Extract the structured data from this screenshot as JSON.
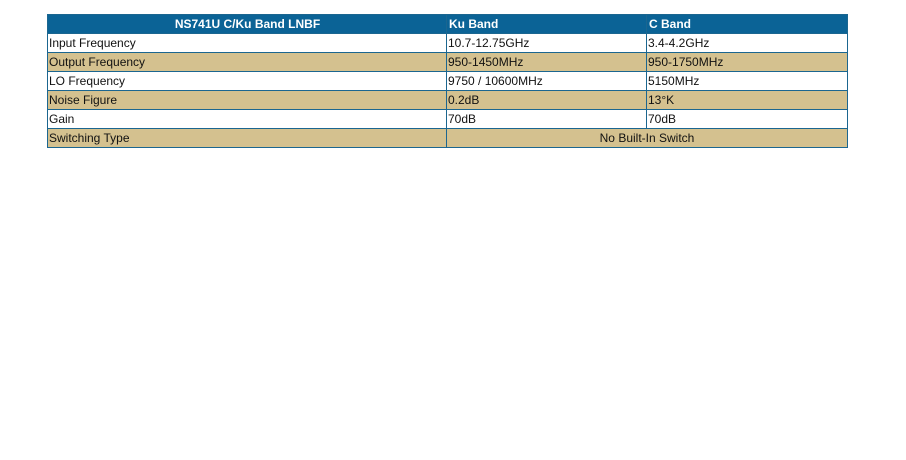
{
  "table": {
    "header": [
      "NS741U C/Ku Band LNBF",
      "Ku Band",
      "C Band"
    ],
    "rows": [
      [
        "Input Frequency",
        "10.7-12.75GHz",
        "3.4-4.2GHz"
      ],
      [
        "Output Frequency",
        "950-1450MHz",
        "950-1750MHz"
      ],
      [
        "LO Frequency",
        "9750 / 10600MHz",
        "5150MHz"
      ],
      [
        "Noise Figure",
        "0.2dB",
        "13°K"
      ],
      [
        "Gain",
        "70dB",
        "70dB"
      ],
      [
        "Switching Type",
        "No Built-In Switch"
      ]
    ]
  }
}
